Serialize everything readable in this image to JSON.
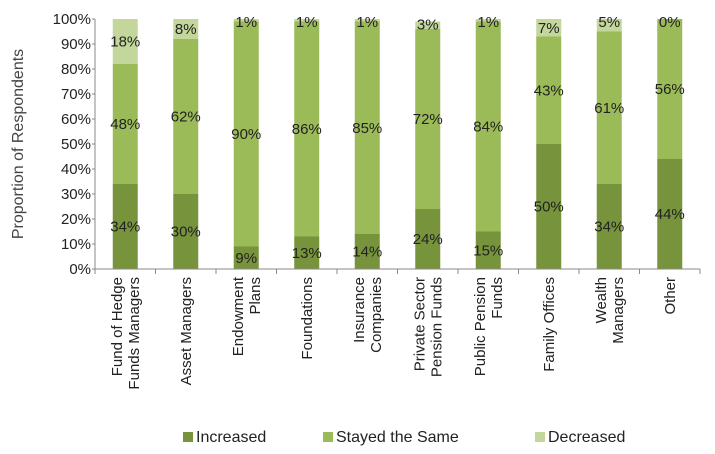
{
  "chart_data": {
    "type": "bar",
    "stacked": true,
    "ylabel": "Proportion of Respondents",
    "ylim": [
      0,
      100
    ],
    "y_ticks": [
      "0%",
      "10%",
      "20%",
      "30%",
      "40%",
      "50%",
      "60%",
      "70%",
      "80%",
      "90%",
      "100%"
    ],
    "grid": false,
    "legend_position": "bottom",
    "categories": [
      [
        "Fund of Hedge",
        "Funds Managers"
      ],
      [
        "Asset Managers"
      ],
      [
        "Endowment",
        "Plans"
      ],
      [
        "Foundations"
      ],
      [
        "Insurance",
        "Companies"
      ],
      [
        "Private Sector",
        "Pension Funds"
      ],
      [
        "Public Pension",
        "Funds"
      ],
      [
        "Family Offices"
      ],
      [
        "Wealth",
        "Managers"
      ],
      [
        "Other"
      ]
    ],
    "series": [
      {
        "name": "Increased",
        "color": "#77933c",
        "values": [
          34,
          30,
          9,
          13,
          14,
          24,
          15,
          50,
          34,
          44
        ],
        "labels": [
          "34%",
          "30%",
          "9%",
          "13%",
          "14%",
          "24%",
          "15%",
          "50%",
          "34%",
          "44%"
        ]
      },
      {
        "name": "Stayed the Same",
        "color": "#9bbb59",
        "values": [
          48,
          62,
          90,
          86,
          85,
          72,
          84,
          43,
          61,
          56
        ],
        "labels": [
          "48%",
          "62%",
          "90%",
          "86%",
          "85%",
          "72%",
          "84%",
          "43%",
          "61%",
          "56%"
        ]
      },
      {
        "name": "Decreased",
        "color": "#c3d69b",
        "values": [
          18,
          8,
          1,
          1,
          1,
          3,
          1,
          7,
          5,
          0
        ],
        "labels": [
          "18%",
          "8%",
          "1%",
          "1%",
          "1%",
          "3%",
          "1%",
          "7%",
          "5%",
          "0%"
        ]
      }
    ]
  }
}
